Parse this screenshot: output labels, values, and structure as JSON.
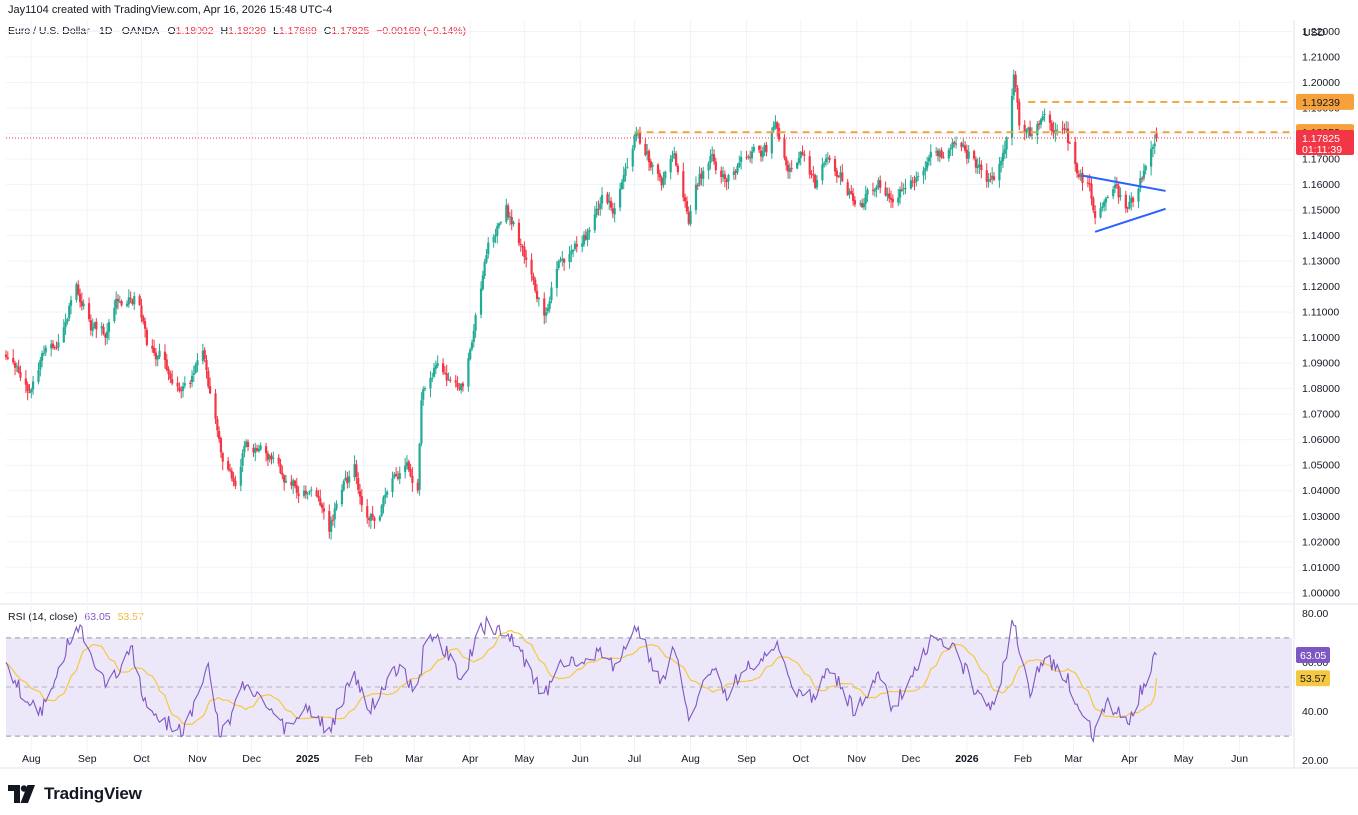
{
  "header": {
    "credit": "Jay1104 created with TradingView.com, Apr 16, 2026 15:48 UTC-4"
  },
  "legend": {
    "symbol": "Euro / U.S. Dollar · 1D · OANDA",
    "open_label": "O",
    "open": "1.18002",
    "high_label": "H",
    "high": "1.18239",
    "low_label": "L",
    "low": "1.17669",
    "close_label": "C",
    "close": "1.17825",
    "change": "−0.00169 (−0.14%)"
  },
  "rsi_legend": {
    "label": "RSI (14, close)",
    "rsi_value": "63.05",
    "ma_value": "53.57"
  },
  "currency": "USD",
  "footer": {
    "brand": "TradingView"
  },
  "colors": {
    "up": "#22ab94",
    "down": "#f23645",
    "level_line": "#f7a13a",
    "triangle": "#2962ff",
    "rsi_line": "#7e57c2",
    "rsi_ma": "#f5c842",
    "rsi_band": "#ede8f9",
    "grid": "#f0f3fa"
  },
  "chart_data": [
    {
      "type": "candlestick",
      "title": "Euro / U.S. Dollar · 1D · OANDA",
      "ylim": [
        0.996,
        1.2245
      ],
      "y_ticks": [
        "1.22000",
        "1.21000",
        "1.20000",
        "1.19000",
        "1.18000",
        "1.17000",
        "1.16000",
        "1.15000",
        "1.14000",
        "1.13000",
        "1.12000",
        "1.11000",
        "1.10000",
        "1.09000",
        "1.08000",
        "1.07000",
        "1.06000",
        "1.05000",
        "1.04000",
        "1.03000",
        "1.02000",
        "1.01000",
        "1.00000"
      ],
      "x_tick_labels": [
        "Aug",
        "Sep",
        "Oct",
        "Nov",
        "Dec",
        "2025",
        "Feb",
        "Mar",
        "Apr",
        "May",
        "Jun",
        "Jul",
        "Aug",
        "Sep",
        "Oct",
        "Nov",
        "Dec",
        "2026",
        "Feb",
        "Mar",
        "Apr",
        "May",
        "Jun"
      ],
      "x_range": [
        "2024-07-18",
        "2026-06-30"
      ],
      "anchors": [
        [
          "2024-07-18",
          1.092
        ],
        [
          "2024-07-25",
          1.085
        ],
        [
          "2024-08-01",
          1.08
        ],
        [
          "2024-08-08",
          1.092
        ],
        [
          "2024-08-15",
          1.098
        ],
        [
          "2024-08-22",
          1.112
        ],
        [
          "2024-08-26",
          1.118
        ],
        [
          "2024-09-03",
          1.105
        ],
        [
          "2024-09-11",
          1.102
        ],
        [
          "2024-09-17",
          1.112
        ],
        [
          "2024-09-25",
          1.118
        ],
        [
          "2024-09-30",
          1.114
        ],
        [
          "2024-10-04",
          1.098
        ],
        [
          "2024-10-14",
          1.091
        ],
        [
          "2024-10-23",
          1.078
        ],
        [
          "2024-10-28",
          1.082
        ],
        [
          "2024-11-01",
          1.089
        ],
        [
          "2024-11-05",
          1.092
        ],
        [
          "2024-11-07",
          1.081
        ],
        [
          "2024-11-14",
          1.055
        ],
        [
          "2024-11-22",
          1.04
        ],
        [
          "2024-11-27",
          1.056
        ],
        [
          "2024-12-05",
          1.058
        ],
        [
          "2024-12-12",
          1.051
        ],
        [
          "2024-12-20",
          1.043
        ],
        [
          "2024-12-30",
          1.04
        ],
        [
          "2025-01-06",
          1.035
        ],
        [
          "2025-01-13",
          1.025
        ],
        [
          "2025-01-20",
          1.042
        ],
        [
          "2025-01-27",
          1.048
        ],
        [
          "2025-02-03",
          1.03
        ],
        [
          "2025-02-10",
          1.032
        ],
        [
          "2025-02-17",
          1.046
        ],
        [
          "2025-02-25",
          1.049
        ],
        [
          "2025-03-03",
          1.042
        ],
        [
          "2025-03-05",
          1.078
        ],
        [
          "2025-03-14",
          1.088
        ],
        [
          "2025-03-21",
          1.082
        ],
        [
          "2025-03-28",
          1.08
        ],
        [
          "2025-04-03",
          1.104
        ],
        [
          "2025-04-11",
          1.136
        ],
        [
          "2025-04-21",
          1.15
        ],
        [
          "2025-04-28",
          1.138
        ],
        [
          "2025-05-12",
          1.109
        ],
        [
          "2025-05-20",
          1.128
        ],
        [
          "2025-05-30",
          1.136
        ],
        [
          "2025-06-06",
          1.141
        ],
        [
          "2025-06-13",
          1.155
        ],
        [
          "2025-06-20",
          1.151
        ],
        [
          "2025-07-01",
          1.18
        ],
        [
          "2025-07-08",
          1.172
        ],
        [
          "2025-07-16",
          1.16
        ],
        [
          "2025-07-23",
          1.176
        ],
        [
          "2025-07-31",
          1.143
        ],
        [
          "2025-08-06",
          1.164
        ],
        [
          "2025-08-13",
          1.17
        ],
        [
          "2025-08-21",
          1.161
        ],
        [
          "2025-08-29",
          1.168
        ],
        [
          "2025-09-05",
          1.172
        ],
        [
          "2025-09-12",
          1.173
        ],
        [
          "2025-09-17",
          1.184
        ],
        [
          "2025-09-25",
          1.167
        ],
        [
          "2025-10-01",
          1.173
        ],
        [
          "2025-10-09",
          1.16
        ],
        [
          "2025-10-16",
          1.17
        ],
        [
          "2025-10-24",
          1.162
        ],
        [
          "2025-10-31",
          1.154
        ],
        [
          "2025-11-06",
          1.155
        ],
        [
          "2025-11-13",
          1.162
        ],
        [
          "2025-11-21",
          1.151
        ],
        [
          "2025-11-28",
          1.159
        ],
        [
          "2025-12-05",
          1.164
        ],
        [
          "2025-12-12",
          1.174
        ],
        [
          "2025-12-19",
          1.171
        ],
        [
          "2025-12-24",
          1.178
        ],
        [
          "2026-01-02",
          1.172
        ],
        [
          "2026-01-09",
          1.165
        ],
        [
          "2026-01-16",
          1.16
        ],
        [
          "2026-01-22",
          1.175
        ],
        [
          "2026-01-27",
          1.203
        ],
        [
          "2026-01-30",
          1.185
        ],
        [
          "2026-02-05",
          1.179
        ],
        [
          "2026-02-11",
          1.187
        ],
        [
          "2026-02-18",
          1.18
        ],
        [
          "2026-02-25",
          1.181
        ],
        [
          "2026-03-03",
          1.162
        ],
        [
          "2026-03-10",
          1.16
        ],
        [
          "2026-03-13",
          1.148
        ],
        [
          "2026-03-19",
          1.152
        ],
        [
          "2026-03-25",
          1.158
        ],
        [
          "2026-03-31",
          1.148
        ],
        [
          "2026-04-06",
          1.156
        ],
        [
          "2026-04-10",
          1.17
        ],
        [
          "2026-04-16",
          1.178
        ]
      ],
      "last": {
        "open": 1.18002,
        "high": 1.18239,
        "low": 1.17669,
        "close": 1.17825
      },
      "hlines": [
        {
          "value": 1.19239,
          "from": "2026-02-04",
          "style": "dashed",
          "color": "#f7a13a",
          "label": "1.19239"
        },
        {
          "value": 1.18053,
          "from": "2025-07-01",
          "style": "dashed",
          "color": "#f7a13a",
          "label": "1.18053"
        }
      ],
      "price_line": {
        "value": 1.17825,
        "style": "dotted",
        "color": "#f23645"
      },
      "last_badge": {
        "price": "1.17825",
        "countdown": "01:11:39"
      },
      "triangle": [
        {
          "from": [
            "2026-03-06",
            1.1635
          ],
          "to": [
            "2026-04-21",
            1.1575
          ]
        },
        {
          "from": [
            "2026-03-13",
            1.1415
          ],
          "to": [
            "2026-04-21",
            1.1505
          ]
        }
      ]
    },
    {
      "type": "line",
      "title": "RSI (14, close)",
      "ylim": [
        17,
        83
      ],
      "y_ticks": [
        "80.00",
        "60.00",
        "40.00",
        "20.00"
      ],
      "bands": {
        "upper": 70,
        "middle": 50,
        "lower": 30
      },
      "series": [
        {
          "name": "RSI",
          "last": 63.05
        },
        {
          "name": "MA",
          "last": 53.57
        }
      ],
      "extremes": [
        [
          "2024-07-18",
          58
        ],
        [
          "2024-08-05",
          38
        ],
        [
          "2024-08-26",
          76
        ],
        [
          "2024-09-11",
          50
        ],
        [
          "2024-09-26",
          64
        ],
        [
          "2024-10-04",
          40
        ],
        [
          "2024-10-23",
          32
        ],
        [
          "2024-11-01",
          44
        ],
        [
          "2024-11-07",
          57
        ],
        [
          "2024-11-14",
          29
        ],
        [
          "2024-11-27",
          51
        ],
        [
          "2024-12-04",
          46
        ],
        [
          "2024-12-17",
          33
        ],
        [
          "2025-01-02",
          42
        ],
        [
          "2025-01-13",
          32
        ],
        [
          "2025-01-27",
          56
        ],
        [
          "2025-02-03",
          40
        ],
        [
          "2025-02-20",
          58
        ],
        [
          "2025-03-03",
          48
        ],
        [
          "2025-03-08",
          74
        ],
        [
          "2025-03-14",
          70
        ],
        [
          "2025-03-28",
          52
        ],
        [
          "2025-04-04",
          70
        ],
        [
          "2025-04-11",
          76
        ],
        [
          "2025-04-22",
          72
        ],
        [
          "2025-05-12",
          46
        ],
        [
          "2025-05-22",
          61
        ],
        [
          "2025-06-06",
          60
        ],
        [
          "2025-06-13",
          64
        ],
        [
          "2025-06-20",
          58
        ],
        [
          "2025-07-01",
          76
        ],
        [
          "2025-07-16",
          52
        ],
        [
          "2025-07-23",
          65
        ],
        [
          "2025-08-01",
          35
        ],
        [
          "2025-08-13",
          60
        ],
        [
          "2025-08-21",
          48
        ],
        [
          "2025-09-05",
          60
        ],
        [
          "2025-09-17",
          68
        ],
        [
          "2025-09-25",
          50
        ],
        [
          "2025-10-08",
          46
        ],
        [
          "2025-10-17",
          57
        ],
        [
          "2025-10-31",
          40
        ],
        [
          "2025-11-13",
          54
        ],
        [
          "2025-11-21",
          42
        ],
        [
          "2025-12-05",
          58
        ],
        [
          "2025-12-12",
          69
        ],
        [
          "2025-12-24",
          66
        ],
        [
          "2026-01-09",
          45
        ],
        [
          "2026-01-16",
          42
        ],
        [
          "2026-01-27",
          77
        ],
        [
          "2026-02-05",
          48
        ],
        [
          "2026-02-12",
          62
        ],
        [
          "2026-02-25",
          54
        ],
        [
          "2026-03-05",
          40
        ],
        [
          "2026-03-13",
          30
        ],
        [
          "2026-03-20",
          44
        ],
        [
          "2026-03-31",
          36
        ],
        [
          "2026-04-16",
          63.05
        ]
      ]
    }
  ]
}
